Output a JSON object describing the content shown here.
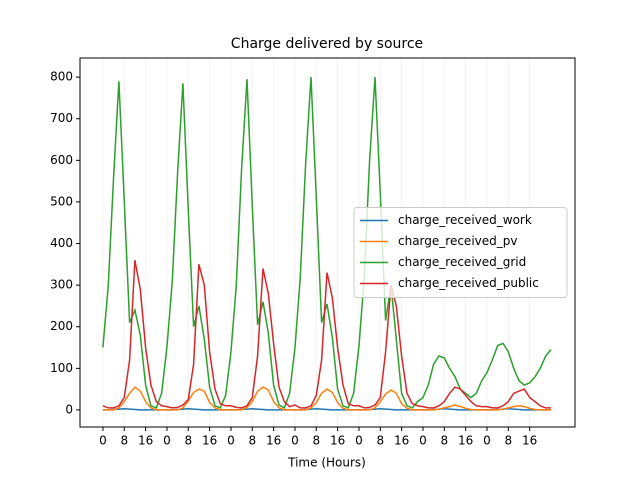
{
  "chart_data": {
    "type": "line",
    "title": "Charge delivered by source",
    "x_label": "Time (Hours)",
    "x": [
      0,
      2,
      4,
      6,
      8,
      10,
      12,
      14,
      16,
      18,
      20,
      22,
      24,
      26,
      28,
      30,
      32,
      34,
      36,
      38,
      40,
      42,
      44,
      46,
      48,
      50,
      52,
      54,
      56,
      58,
      60,
      62,
      64,
      66,
      68,
      70,
      72,
      74,
      76,
      78,
      80,
      82,
      84,
      86,
      88,
      90,
      92,
      94,
      96,
      98,
      100,
      102,
      104,
      106,
      108,
      110,
      112,
      114,
      116,
      118,
      120,
      122,
      124,
      126,
      128,
      130,
      132,
      134,
      136,
      138,
      140,
      142,
      144,
      146,
      148,
      150,
      152,
      154,
      156,
      158,
      160,
      162,
      164,
      166,
      168
    ],
    "series": [
      {
        "name": "charge_received_work",
        "color": "#1f77b4",
        "values": [
          0,
          0,
          1,
          2,
          3,
          2,
          1,
          0,
          0,
          0,
          0,
          0,
          0,
          0,
          1,
          2,
          3,
          2,
          1,
          0,
          0,
          0,
          0,
          0,
          0,
          0,
          1,
          2,
          3,
          2,
          1,
          0,
          0,
          0,
          0,
          0,
          0,
          0,
          1,
          2,
          3,
          2,
          1,
          0,
          0,
          0,
          0,
          0,
          0,
          0,
          1,
          2,
          3,
          2,
          1,
          0,
          0,
          0,
          0,
          0,
          0,
          0,
          1,
          2,
          3,
          2,
          1,
          0,
          0,
          0,
          0,
          0,
          0,
          0,
          1,
          2,
          3,
          2,
          1,
          0,
          0,
          0,
          0,
          0,
          0
        ]
      },
      {
        "name": "charge_received_pv",
        "color": "#ff7f0e",
        "values": [
          0,
          0,
          0,
          5,
          20,
          40,
          55,
          45,
          20,
          5,
          0,
          0,
          0,
          0,
          0,
          5,
          22,
          42,
          50,
          45,
          18,
          5,
          0,
          0,
          0,
          0,
          0,
          6,
          20,
          45,
          55,
          48,
          20,
          5,
          0,
          0,
          0,
          0,
          0,
          5,
          18,
          40,
          50,
          42,
          18,
          4,
          0,
          0,
          0,
          0,
          0,
          5,
          20,
          38,
          48,
          40,
          15,
          4,
          0,
          0,
          0,
          0,
          0,
          2,
          5,
          8,
          12,
          8,
          4,
          1,
          0,
          0,
          0,
          0,
          0,
          2,
          5,
          8,
          10,
          8,
          4,
          1,
          0,
          0,
          0
        ]
      },
      {
        "name": "charge_received_grid",
        "color": "#2ca02c",
        "values": [
          150,
          300,
          560,
          790,
          500,
          210,
          240,
          180,
          60,
          10,
          5,
          40,
          150,
          310,
          570,
          785,
          480,
          200,
          250,
          170,
          55,
          10,
          5,
          35,
          140,
          300,
          580,
          795,
          490,
          205,
          260,
          185,
          60,
          12,
          5,
          40,
          150,
          320,
          590,
          800,
          510,
          210,
          255,
          175,
          50,
          10,
          5,
          40,
          155,
          320,
          600,
          800,
          520,
          215,
          300,
          170,
          40,
          10,
          5,
          20,
          30,
          60,
          110,
          130,
          125,
          100,
          80,
          50,
          40,
          30,
          40,
          70,
          90,
          120,
          155,
          160,
          140,
          100,
          70,
          60,
          65,
          80,
          100,
          130,
          145
        ]
      },
      {
        "name": "charge_received_public",
        "color": "#d62728",
        "values": [
          10,
          5,
          5,
          10,
          30,
          120,
          360,
          290,
          150,
          60,
          20,
          10,
          8,
          5,
          6,
          12,
          25,
          110,
          350,
          300,
          140,
          50,
          15,
          10,
          10,
          6,
          5,
          10,
          30,
          130,
          340,
          280,
          160,
          55,
          20,
          8,
          12,
          5,
          5,
          10,
          35,
          120,
          330,
          270,
          150,
          60,
          15,
          10,
          10,
          5,
          6,
          12,
          30,
          140,
          300,
          250,
          130,
          40,
          15,
          10,
          8,
          5,
          5,
          10,
          20,
          40,
          55,
          50,
          35,
          20,
          10,
          8,
          8,
          5,
          5,
          10,
          20,
          40,
          45,
          50,
          30,
          20,
          10,
          5,
          5
        ]
      }
    ],
    "xlim": [
      -8.6,
      177
    ],
    "ylim": [
      -41,
      846
    ],
    "xticks": [
      {
        "value": 0,
        "label": "0"
      },
      {
        "value": 8,
        "label": "8"
      },
      {
        "value": 16,
        "label": "16"
      },
      {
        "value": 24,
        "label": "0"
      },
      {
        "value": 32,
        "label": "8"
      },
      {
        "value": 40,
        "label": "16"
      },
      {
        "value": 48,
        "label": "0"
      },
      {
        "value": 56,
        "label": "8"
      },
      {
        "value": 64,
        "label": "16"
      },
      {
        "value": 72,
        "label": "0"
      },
      {
        "value": 80,
        "label": "8"
      },
      {
        "value": 88,
        "label": "16"
      },
      {
        "value": 96,
        "label": "0"
      },
      {
        "value": 104,
        "label": "8"
      },
      {
        "value": 112,
        "label": "16"
      },
      {
        "value": 120,
        "label": "0"
      },
      {
        "value": 128,
        "label": "8"
      },
      {
        "value": 136,
        "label": "16"
      },
      {
        "value": 144,
        "label": "0"
      },
      {
        "value": 152,
        "label": "8"
      },
      {
        "value": 160,
        "label": "16"
      }
    ],
    "yticks": [
      0,
      100,
      200,
      300,
      400,
      500,
      600,
      700,
      800
    ],
    "x_grid": true,
    "legend": "center right"
  }
}
